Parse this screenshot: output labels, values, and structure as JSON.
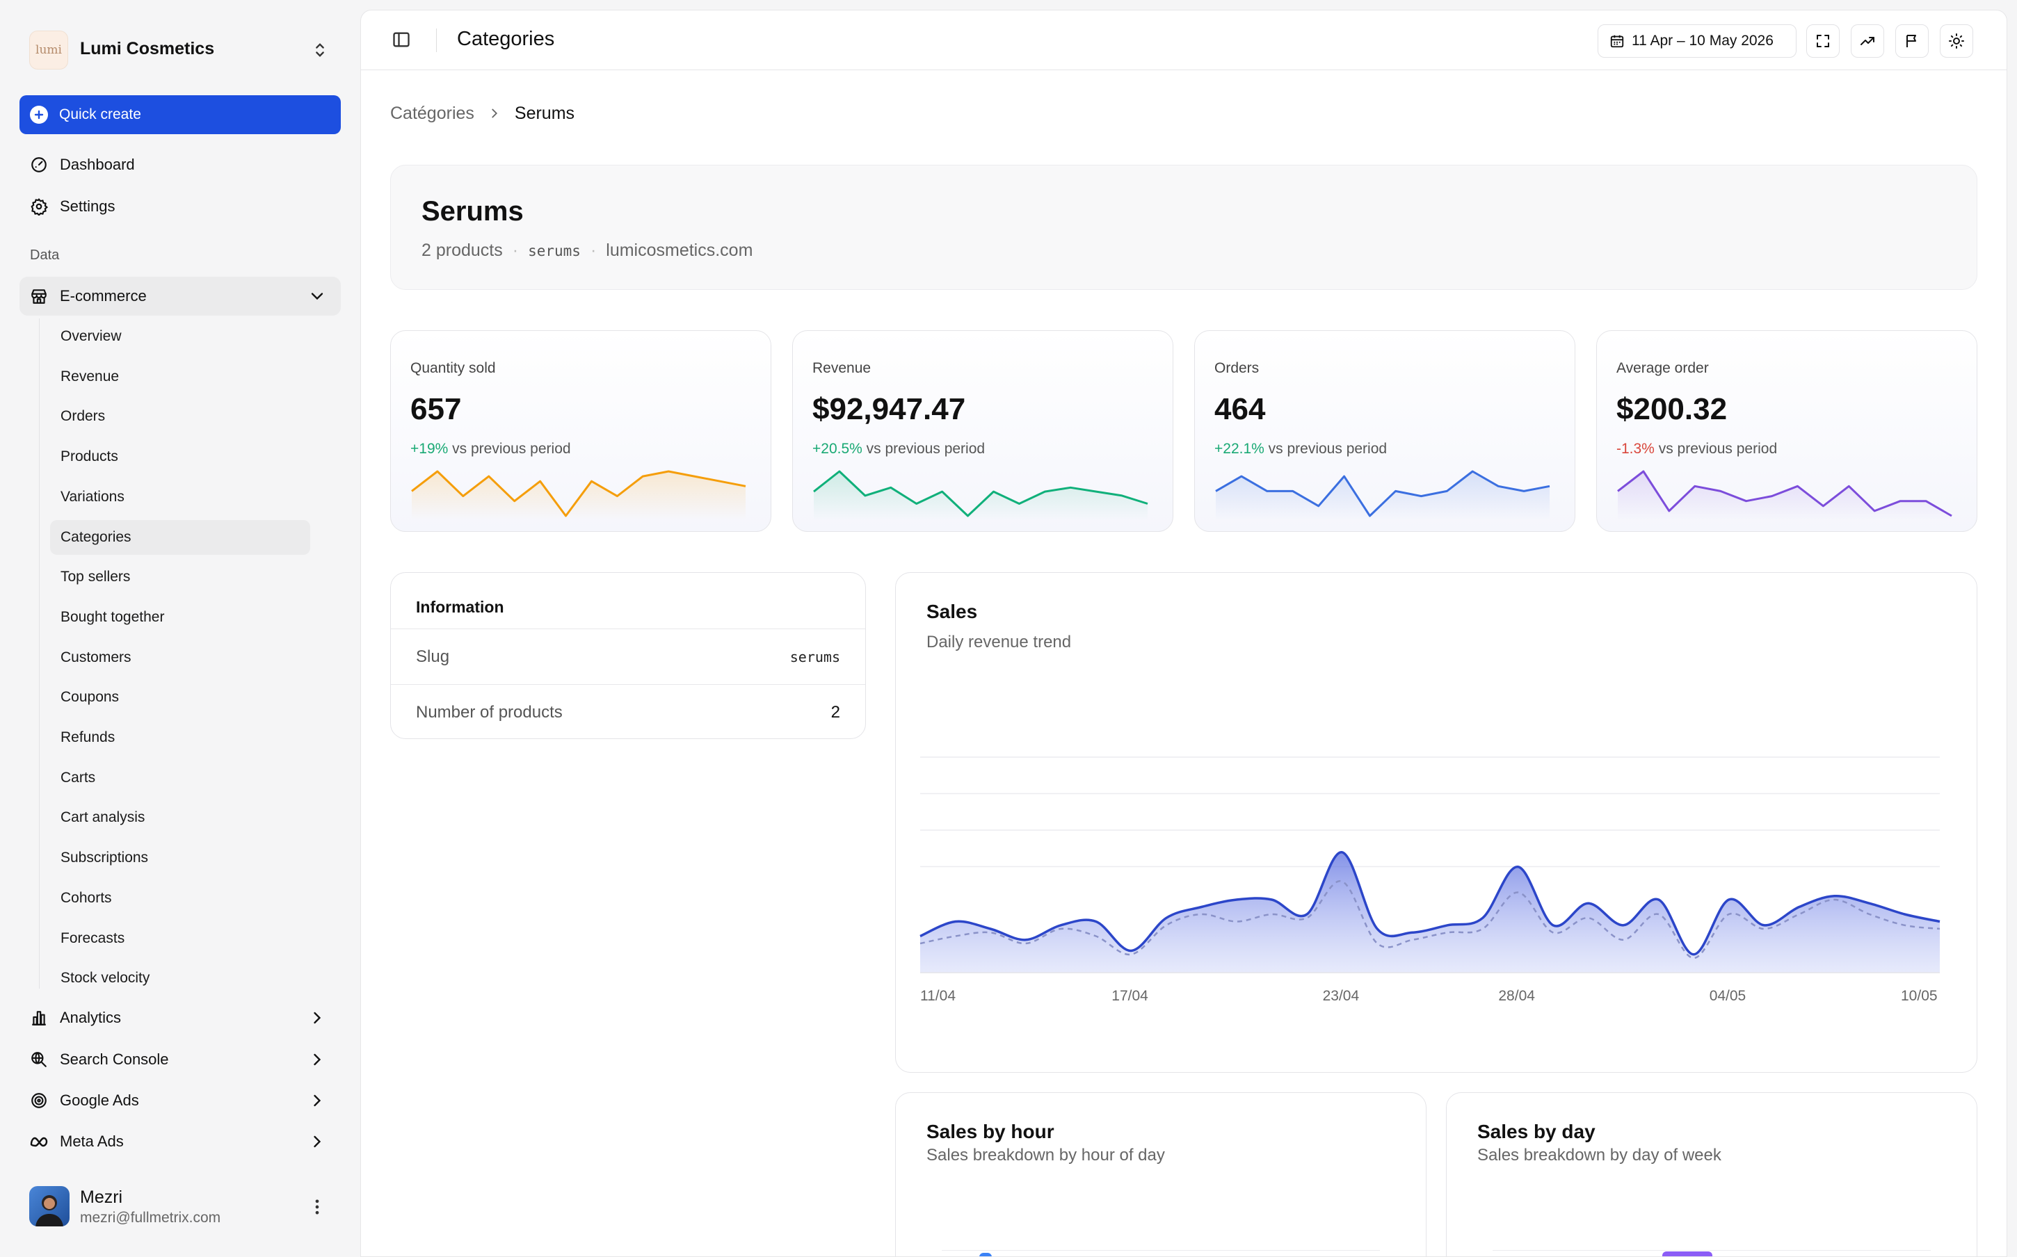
{
  "workspace": {
    "name": "Lumi Cosmetics",
    "logo_text": "lumi"
  },
  "quick_create_label": "Quick create",
  "nav_top": [
    {
      "label": "Dashboard",
      "icon": "dashboard-icon"
    },
    {
      "label": "Settings",
      "icon": "gear-icon"
    }
  ],
  "section_label": "Data",
  "ecommerce": {
    "label": "E-commerce",
    "items": [
      "Overview",
      "Revenue",
      "Orders",
      "Products",
      "Variations",
      "Categories",
      "Top sellers",
      "Bought together",
      "Customers",
      "Coupons",
      "Refunds",
      "Carts",
      "Cart analysis",
      "Subscriptions",
      "Cohorts",
      "Forecasts",
      "Stock velocity"
    ],
    "active": "Categories"
  },
  "nav_bottom": [
    {
      "label": "Analytics",
      "icon": "bar-chart-icon"
    },
    {
      "label": "Search Console",
      "icon": "search-globe-icon"
    },
    {
      "label": "Google Ads",
      "icon": "target-icon"
    },
    {
      "label": "Meta Ads",
      "icon": "meta-icon"
    }
  ],
  "user": {
    "name": "Mezri",
    "email": "mezri@fullmetrix.com"
  },
  "header": {
    "title": "Categories",
    "date_range": "11 Apr – 10 May 2026"
  },
  "breadcrumb": {
    "parent": "Catégories",
    "current": "Serums"
  },
  "category": {
    "title": "Serums",
    "product_count": "2 products",
    "slug": "serums",
    "domain": "lumicosmetics.com",
    "separator": "·"
  },
  "kpis": [
    {
      "label": "Quantity sold",
      "value": "657",
      "change": "+19%",
      "trend": "up",
      "suffix": "vs previous period",
      "color": "#f59e0b",
      "spark": [
        3,
        7,
        2,
        6,
        1,
        5,
        -2,
        5,
        2,
        6,
        7,
        6,
        5,
        4
      ]
    },
    {
      "label": "Revenue",
      "value": "$92,947.47",
      "change": "+20.5%",
      "trend": "up",
      "suffix": "vs previous period",
      "color": "#10b07a",
      "spark": [
        4,
        9,
        3,
        5,
        1,
        4,
        -2,
        4,
        1,
        4,
        5,
        4,
        3,
        1
      ]
    },
    {
      "label": "Orders",
      "value": "464",
      "change": "+22.1%",
      "trend": "up",
      "suffix": "vs previous period",
      "color": "#3b6fe0",
      "spark": [
        5,
        8,
        5,
        5,
        2,
        8,
        0,
        5,
        4,
        5,
        9,
        6,
        5,
        6
      ]
    },
    {
      "label": "Average order",
      "value": "$200.32",
      "change": "-1.3%",
      "trend": "down",
      "suffix": "vs previous period",
      "color": "#7c4ddb",
      "spark": [
        4,
        8,
        0,
        5,
        4,
        2,
        3,
        5,
        1,
        5,
        0,
        2,
        2,
        -1
      ]
    }
  ],
  "info": {
    "title": "Information",
    "rows": [
      {
        "label": "Slug",
        "value": "serums"
      },
      {
        "label": "Number of products",
        "value": "2"
      }
    ]
  },
  "sales": {
    "title": "Sales",
    "subtitle": "Daily revenue trend"
  },
  "sales_by_hour": {
    "title": "Sales by hour",
    "subtitle": "Sales breakdown by hour of day"
  },
  "sales_by_day": {
    "title": "Sales by day",
    "subtitle": "Sales breakdown by day of week"
  },
  "chart_data": {
    "type": "area",
    "title": "Sales",
    "subtitle": "Daily revenue trend",
    "x_ticks": [
      "11/04",
      "17/04",
      "23/04",
      "28/04",
      "04/05",
      "10/05"
    ],
    "x": [
      "11/04",
      "12/04",
      "13/04",
      "14/04",
      "15/04",
      "16/04",
      "17/04",
      "18/04",
      "19/04",
      "20/04",
      "21/04",
      "22/04",
      "23/04",
      "24/04",
      "25/04",
      "26/04",
      "27/04",
      "28/04",
      "29/04",
      "30/04",
      "01/05",
      "02/05",
      "03/05",
      "04/05",
      "05/05",
      "06/05",
      "07/05",
      "08/05",
      "09/05",
      "10/05"
    ],
    "series": [
      {
        "values": [
          10,
          14,
          12,
          9,
          13,
          14,
          6,
          15,
          18,
          20,
          20,
          16,
          33,
          12,
          11,
          13,
          15,
          29,
          13,
          19,
          13,
          20,
          5,
          20,
          13,
          18,
          21,
          19,
          16,
          14
        ]
      },
      {
        "values": [
          8,
          10,
          11,
          8,
          12,
          10,
          5,
          13,
          16,
          14,
          16,
          15,
          25,
          8,
          9,
          11,
          12,
          22,
          11,
          15,
          9,
          16,
          4,
          16,
          12,
          16,
          20,
          16,
          13,
          12
        ]
      }
    ],
    "ylim": [
      0,
      40
    ],
    "grid": true,
    "colors": [
      "#2c46c9",
      "#8a92c8"
    ]
  }
}
